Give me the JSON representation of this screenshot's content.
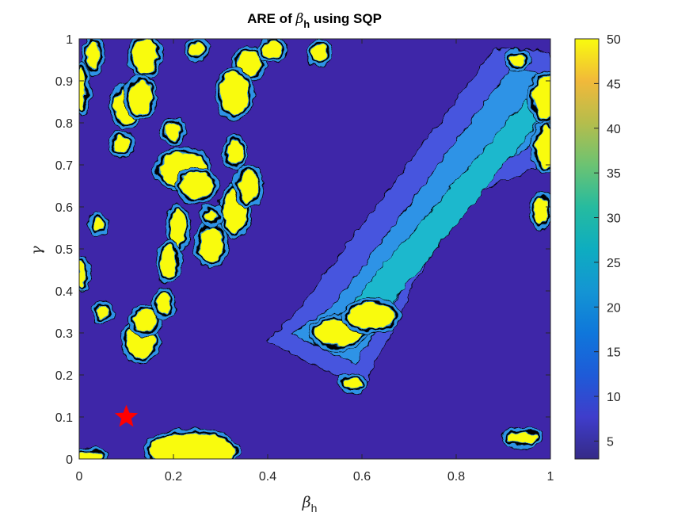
{
  "chart_data": {
    "type": "heatmap",
    "subtype": "filled-contour",
    "title_parts": {
      "prefix": "ARE of ",
      "symbol": "β",
      "subscript": "h",
      "suffix": " using SQP"
    },
    "xlabel_parts": {
      "symbol": "β",
      "subscript": "h"
    },
    "ylabel": "γ",
    "xlim": [
      0,
      1
    ],
    "ylim": [
      0,
      1
    ],
    "xticks": [
      "0",
      "0.2",
      "0.4",
      "0.6",
      "0.8",
      "1"
    ],
    "yticks": [
      "0",
      "0.1",
      "0.2",
      "0.3",
      "0.4",
      "0.5",
      "0.6",
      "0.7",
      "0.8",
      "0.9",
      "1"
    ],
    "colorbar": {
      "colormap": "parula",
      "range": [
        3,
        50
      ],
      "ticks": [
        "5",
        "10",
        "15",
        "20",
        "25",
        "30",
        "35",
        "40",
        "45",
        "50"
      ],
      "tick_values": [
        5,
        10,
        15,
        20,
        25,
        30,
        35,
        40,
        45,
        50
      ]
    },
    "colors": {
      "low": "#3e26a8",
      "level2": "#4754de",
      "mid": "#2e93e6",
      "cyan": "#1eb8cd",
      "high": "#f9fb0e",
      "contour_line": "#000000"
    },
    "marker": {
      "type": "star",
      "color": "#ff0000",
      "x": 0.1,
      "y": 0.1
    },
    "regions": [
      {
        "level": "high",
        "x": 0.03,
        "y": 0.96,
        "rx": 0.012,
        "ry": 0.035
      },
      {
        "level": "high",
        "x": 0.14,
        "y": 0.96,
        "rx": 0.025,
        "ry": 0.04
      },
      {
        "level": "high",
        "x": 0.25,
        "y": 0.975,
        "rx": 0.015,
        "ry": 0.015
      },
      {
        "level": "high",
        "x": 0.36,
        "y": 0.94,
        "rx": 0.025,
        "ry": 0.03
      },
      {
        "level": "high",
        "x": 0.41,
        "y": 0.975,
        "rx": 0.02,
        "ry": 0.02
      },
      {
        "level": "high",
        "x": 0.51,
        "y": 0.965,
        "rx": 0.015,
        "ry": 0.02
      },
      {
        "level": "high",
        "x": 0.1,
        "y": 0.84,
        "rx": 0.025,
        "ry": 0.04
      },
      {
        "level": "high",
        "x": 0.13,
        "y": 0.86,
        "rx": 0.025,
        "ry": 0.04
      },
      {
        "level": "high",
        "x": 0.09,
        "y": 0.75,
        "rx": 0.015,
        "ry": 0.02
      },
      {
        "level": "high",
        "x": 0.2,
        "y": 0.78,
        "rx": 0.015,
        "ry": 0.02
      },
      {
        "level": "high",
        "x": 0.33,
        "y": 0.87,
        "rx": 0.03,
        "ry": 0.05
      },
      {
        "level": "high",
        "x": 0.22,
        "y": 0.69,
        "rx": 0.05,
        "ry": 0.04
      },
      {
        "level": "high",
        "x": 0.25,
        "y": 0.65,
        "rx": 0.035,
        "ry": 0.03
      },
      {
        "level": "high",
        "x": 0.21,
        "y": 0.55,
        "rx": 0.015,
        "ry": 0.045
      },
      {
        "level": "high",
        "x": 0.19,
        "y": 0.47,
        "rx": 0.015,
        "ry": 0.04
      },
      {
        "level": "high",
        "x": 0.28,
        "y": 0.51,
        "rx": 0.025,
        "ry": 0.04
      },
      {
        "level": "high",
        "x": 0.33,
        "y": 0.59,
        "rx": 0.025,
        "ry": 0.05
      },
      {
        "level": "high",
        "x": 0.36,
        "y": 0.65,
        "rx": 0.02,
        "ry": 0.04
      },
      {
        "level": "high",
        "x": 0.28,
        "y": 0.58,
        "rx": 0.012,
        "ry": 0.015
      },
      {
        "level": "high",
        "x": 0.33,
        "y": 0.73,
        "rx": 0.015,
        "ry": 0.03
      },
      {
        "level": "high",
        "x": 0.13,
        "y": 0.28,
        "rx": 0.03,
        "ry": 0.04
      },
      {
        "level": "high",
        "x": 0.14,
        "y": 0.33,
        "rx": 0.025,
        "ry": 0.025
      },
      {
        "level": "high",
        "x": 0.18,
        "y": 0.37,
        "rx": 0.015,
        "ry": 0.025
      },
      {
        "level": "high",
        "x": 0.05,
        "y": 0.35,
        "rx": 0.012,
        "ry": 0.015
      },
      {
        "level": "high",
        "x": 0.006,
        "y": 0.44,
        "rx": 0.008,
        "ry": 0.03
      },
      {
        "level": "high",
        "x": 0.04,
        "y": 0.56,
        "rx": 0.01,
        "ry": 0.015
      },
      {
        "level": "high",
        "x": 0.005,
        "y": 0.88,
        "rx": 0.008,
        "ry": 0.05
      },
      {
        "level": "high",
        "x": 0.24,
        "y": 0.02,
        "rx": 0.09,
        "ry": 0.04
      },
      {
        "level": "high",
        "x": 0.02,
        "y": 0.005,
        "rx": 0.03,
        "ry": 0.01
      },
      {
        "level": "high",
        "x": 0.55,
        "y": 0.3,
        "rx": 0.05,
        "ry": 0.03
      },
      {
        "level": "high",
        "x": 0.62,
        "y": 0.34,
        "rx": 0.05,
        "ry": 0.03
      },
      {
        "level": "high",
        "x": 0.58,
        "y": 0.18,
        "rx": 0.02,
        "ry": 0.012
      },
      {
        "level": "high",
        "x": 0.94,
        "y": 0.05,
        "rx": 0.03,
        "ry": 0.012
      },
      {
        "level": "high",
        "x": 0.99,
        "y": 0.86,
        "rx": 0.025,
        "ry": 0.05
      },
      {
        "level": "high",
        "x": 0.99,
        "y": 0.74,
        "rx": 0.02,
        "ry": 0.05
      },
      {
        "level": "high",
        "x": 0.98,
        "y": 0.59,
        "rx": 0.015,
        "ry": 0.03
      },
      {
        "level": "high",
        "x": 0.93,
        "y": 0.95,
        "rx": 0.015,
        "ry": 0.015
      }
    ],
    "diagonal_band": {
      "from": [
        0.4,
        0.3
      ],
      "to": [
        1.0,
        0.97
      ]
    }
  }
}
